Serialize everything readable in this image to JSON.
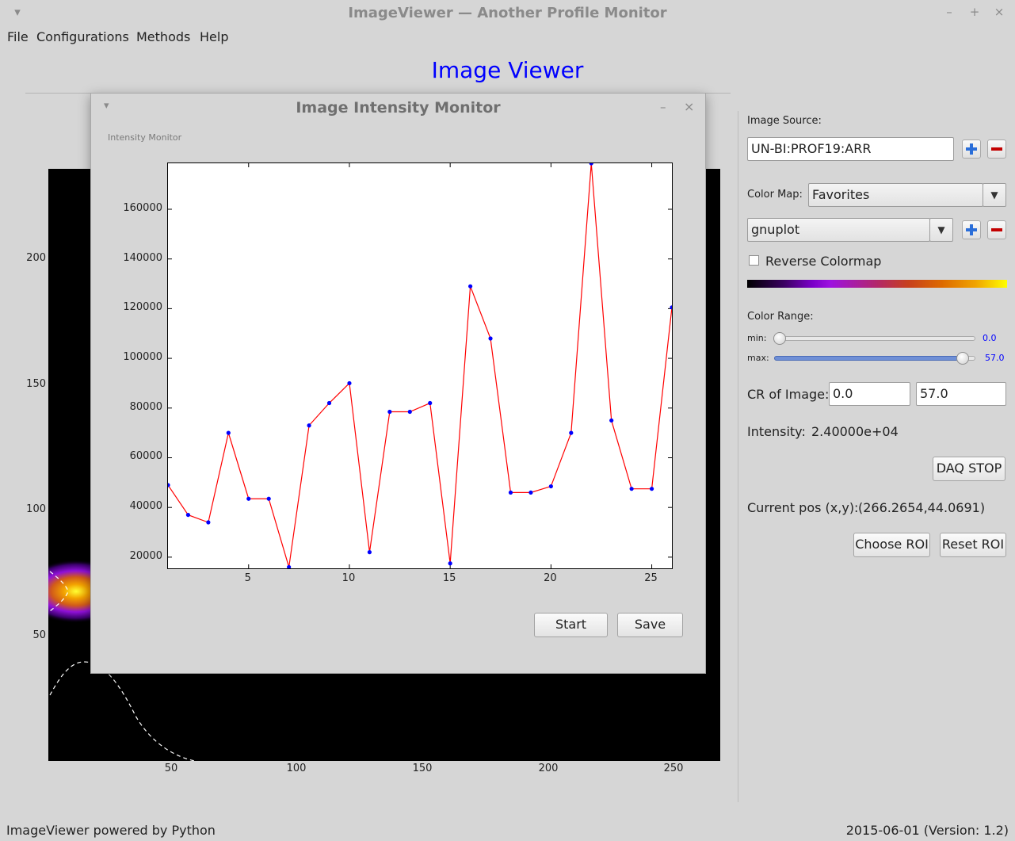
{
  "window": {
    "title": "ImageViewer — Another Profile Monitor",
    "buttons": {
      "menu": "▾",
      "minimize": "–",
      "maximize": "+",
      "close": "×"
    }
  },
  "menubar": [
    "File",
    "Configurations",
    "Methods",
    "Help"
  ],
  "heading": "Image Viewer",
  "image_plot": {
    "colormap": "gnuplot",
    "y_ticks": [
      "200",
      "150",
      "100",
      "50"
    ],
    "x_ticks": [
      "50",
      "100",
      "150",
      "200",
      "250"
    ]
  },
  "panel": {
    "image_source_label": "Image Source:",
    "image_source_value": "UN-BI:PROF19:ARR",
    "color_map_label": "Color Map:",
    "color_map_category": "Favorites",
    "color_map_value": "gnuplot",
    "reverse_colormap_label": "Reverse Colormap",
    "reverse_colormap_checked": false,
    "color_range_label": "Color Range:",
    "min_label": "min:",
    "min_value": "0.0",
    "max_label": "max:",
    "max_value": "57.0",
    "min_fraction": 0.0,
    "max_fraction": 1.0,
    "cr_label": "CR of Image:",
    "cr_min": "0.0",
    "cr_max": "57.0",
    "intensity_label": "Intensity:",
    "intensity_value": "2.40000e+04",
    "daq_button": "DAQ STOP",
    "pos_label": "Current pos (x,y):",
    "pos_value": "(266.2654,44.0691)",
    "choose_roi": "Choose ROI",
    "reset_roi": "Reset ROI",
    "accent_color": "#0000ff",
    "add_color": "#2a6ed9",
    "remove_color": "#c30000"
  },
  "dialog": {
    "title": "Image Intensity Monitor",
    "buttons": {
      "menu": "▾",
      "minimize": "–",
      "close": "×"
    },
    "group_label": "Intensity Monitor",
    "start_button": "Start",
    "save_button": "Save"
  },
  "chart_data": {
    "type": "line",
    "title": "",
    "xlabel": "",
    "ylabel": "",
    "x": [
      1,
      2,
      3,
      4,
      5,
      6,
      7,
      8,
      9,
      10,
      11,
      12,
      13,
      14,
      15,
      16,
      17,
      18,
      19,
      20,
      21,
      22,
      23,
      24,
      25,
      26
    ],
    "series": [
      {
        "values": [
          49000,
          37000,
          34000,
          70000,
          43500,
          43500,
          16000,
          73000,
          82000,
          90000,
          22000,
          78500,
          78500,
          82000,
          17500,
          129000,
          108000,
          46000,
          46000,
          48500,
          70000,
          178500,
          75000,
          47500,
          47500,
          120500
        ],
        "line_color": "#ff0000",
        "marker_color": "#0000ff"
      }
    ],
    "xlim": [
      1,
      26
    ],
    "ylim": [
      15500,
      178500
    ],
    "x_ticks": [
      5,
      10,
      15,
      20,
      25
    ],
    "y_ticks": [
      20000,
      40000,
      60000,
      80000,
      100000,
      120000,
      140000,
      160000
    ],
    "grid": false
  },
  "footer": {
    "left": "ImageViewer powered by Python",
    "right": "2015-06-01 (Version: 1.2)"
  }
}
